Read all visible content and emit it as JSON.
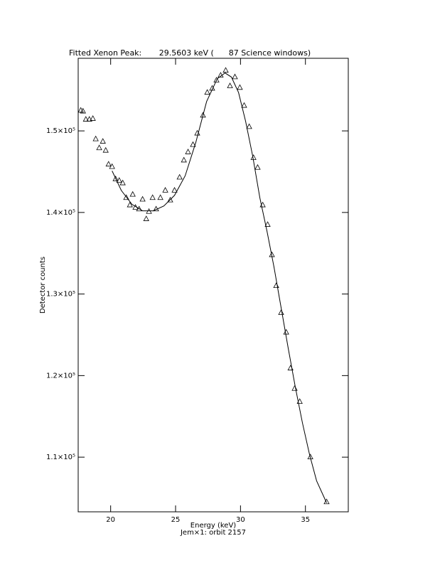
{
  "chart_data": {
    "type": "scatter",
    "title": "Fitted Xenon Peak:       29.5603 keV (      87 Science windows)",
    "x_label": "Energy (keV)",
    "subtitle": "Jem×1: orbit 2157",
    "y_label": "Detector counts",
    "xlim": [
      17.5,
      38.3
    ],
    "ylim": [
      103300,
      158900
    ],
    "xticks": [
      20,
      25,
      30,
      35
    ],
    "yticks": [
      {
        "value": 110000,
        "label": "1.1×10⁵"
      },
      {
        "value": 120000,
        "label": "1.2×10⁵"
      },
      {
        "value": 130000,
        "label": "1.3×10⁵"
      },
      {
        "value": 140000,
        "label": "1.4×10⁵"
      },
      {
        "value": 150000,
        "label": "1.5×10⁵"
      }
    ],
    "series": [
      {
        "style": "markers",
        "color": "#000000",
        "x": [
          17.7,
          17.87,
          18.09,
          18.36,
          18.63,
          18.85,
          19.12,
          19.4,
          19.62,
          19.84,
          20.11,
          20.38,
          20.66,
          20.93,
          21.2,
          21.48,
          21.7,
          21.91,
          22.19,
          22.46,
          22.74,
          22.95,
          23.23,
          23.5,
          23.83,
          24.21,
          24.59,
          24.92,
          25.31,
          25.64,
          25.96,
          26.34,
          26.67,
          27.11,
          27.44,
          27.82,
          28.15,
          28.47,
          28.86,
          29.19,
          29.57,
          29.95,
          30.28,
          30.67,
          31.0,
          31.32,
          31.71,
          32.09,
          32.42,
          32.75,
          33.13,
          33.52,
          33.85,
          34.17,
          34.56,
          35.38,
          36.63
        ],
        "values": [
          152500,
          152400,
          151400,
          151400,
          151500,
          149000,
          147900,
          148700,
          147600,
          145900,
          145600,
          144100,
          143900,
          143600,
          141800,
          140900,
          142200,
          140600,
          140400,
          141600,
          139200,
          140100,
          141800,
          140400,
          141800,
          142700,
          141500,
          142700,
          144300,
          146400,
          147400,
          148300,
          149700,
          151900,
          154700,
          155200,
          156200,
          156800,
          157400,
          155500,
          156600,
          155300,
          153100,
          150500,
          146700,
          145500,
          140900,
          138500,
          134800,
          131000,
          127700,
          125300,
          120900,
          118400,
          116800,
          110000,
          104500
        ]
      },
      {
        "style": "line",
        "color": "#000000",
        "x": [
          20.11,
          20.82,
          21.64,
          22.46,
          23.28,
          24.1,
          24.92,
          25.74,
          26.56,
          27.39,
          28.21,
          28.81,
          29.3,
          29.85,
          30.39,
          30.94,
          31.49,
          32.04,
          32.58,
          33.13,
          33.68,
          34.22,
          34.77,
          35.32,
          35.86,
          36.63
        ],
        "values": [
          145100,
          142700,
          141000,
          140200,
          140200,
          140800,
          142100,
          144500,
          148600,
          153600,
          156400,
          157100,
          156600,
          154700,
          151200,
          146900,
          141800,
          137700,
          133300,
          128300,
          123300,
          118600,
          114200,
          110300,
          107100,
          104400
        ]
      }
    ]
  }
}
